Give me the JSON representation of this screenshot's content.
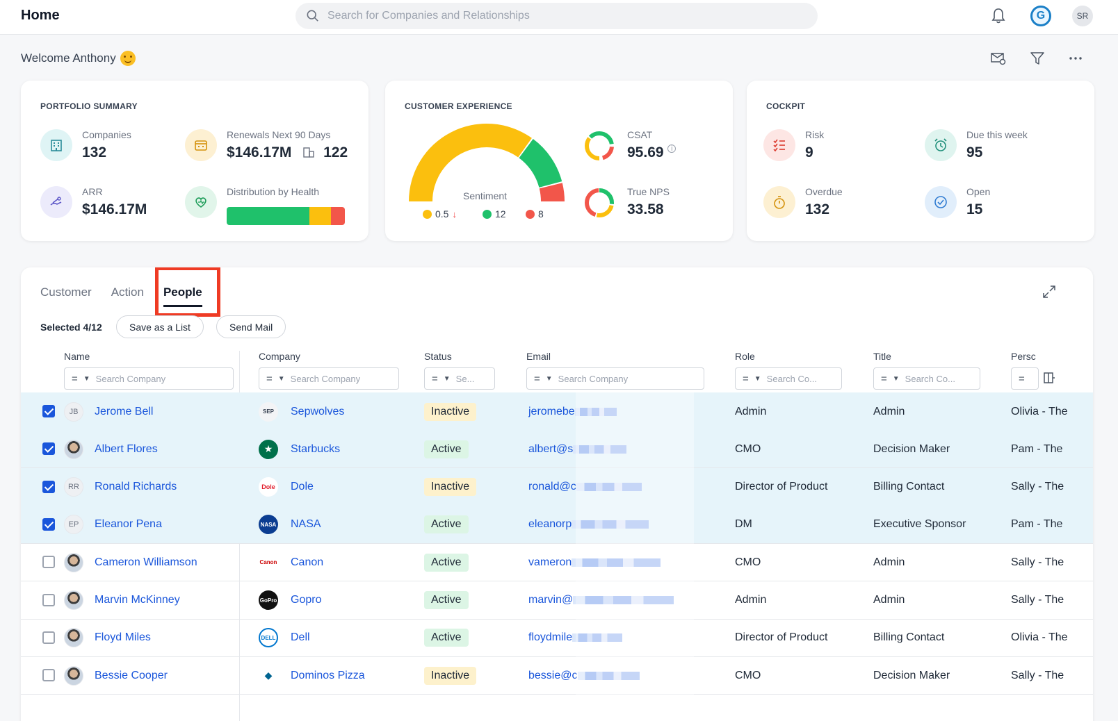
{
  "topbar": {
    "title": "Home",
    "search_placeholder": "Search for Companies and Relationships",
    "g_badge": "G",
    "user_initials": "SR"
  },
  "welcome": {
    "text": "Welcome Anthony"
  },
  "portfolio": {
    "title": "PORTFOLIO SUMMARY",
    "companies_label": "Companies",
    "companies_value": "132",
    "renewals_label": "Renewals Next 90 Days",
    "renewals_value": "$146.17M",
    "renewals_count": "122",
    "arr_label": "ARR",
    "arr_value": "$146.17M",
    "health_label": "Distribution by Health",
    "health": {
      "green": 0.7,
      "yellow": 0.18,
      "red": 0.12
    }
  },
  "experience": {
    "title": "CUSTOMER EXPERIENCE",
    "sentiment_label": "Sentiment",
    "sentiment": {
      "yellow": 0.5,
      "green": 12,
      "red": 8
    },
    "legend_yellow": "0.5",
    "legend_green": "12",
    "legend_red": "8",
    "csat_label": "CSAT",
    "csat_value": "95.69",
    "nps_label": "True NPS",
    "nps_value": "33.58"
  },
  "cockpit": {
    "title": "COCKPIT",
    "risk_label": "Risk",
    "risk_value": "9",
    "due_label": "Due this week",
    "due_value": "95",
    "overdue_label": "Overdue",
    "overdue_value": "132",
    "open_label": "Open",
    "open_value": "15"
  },
  "tabs": [
    "Customer",
    "Action",
    "People"
  ],
  "toolbar": {
    "selected_text": "Selected 4/12",
    "save_label": "Save as a List",
    "send_label": "Send Mail"
  },
  "columns": {
    "name": "Name",
    "company": "Company",
    "status": "Status",
    "email": "Email",
    "role": "Role",
    "title": "Title",
    "persona": "Persc",
    "name_ph": "Search Company",
    "company_ph": "Search Company",
    "status_ph": "Se...",
    "email_ph": "Search Company",
    "role_ph": "Search Co...",
    "title_ph": "Search Co..."
  },
  "rows": [
    {
      "initials": "JB",
      "name": "Jerome Bell",
      "company": "Sepwolves",
      "status": "Inactive",
      "email": "jeromebe",
      "role": "Admin",
      "title": "Admin",
      "persona": "Olivia - The",
      "checked": true
    },
    {
      "initials": "",
      "name": "Albert Flores",
      "company": "Starbucks",
      "status": "Active",
      "email": "albert@s",
      "role": "CMO",
      "title": "Decision Maker",
      "persona": "Pam - The",
      "checked": true
    },
    {
      "initials": "RR",
      "name": "Ronald Richards",
      "company": "Dole",
      "status": "Inactive",
      "email": "ronald@c",
      "role": "Director of Product",
      "title": "Billing Contact",
      "persona": "Sally - The",
      "checked": true
    },
    {
      "initials": "EP",
      "name": "Eleanor Pena",
      "company": "NASA",
      "status": "Active",
      "email": "eleanorp",
      "role": "DM",
      "title": "Executive Sponsor",
      "persona": "Pam - The",
      "checked": true
    },
    {
      "initials": "",
      "name": "Cameron Williamson",
      "company": "Canon",
      "status": "Active",
      "email": "vameron",
      "role": "CMO",
      "title": "Admin",
      "persona": "Sally - The",
      "checked": false
    },
    {
      "initials": "",
      "name": "Marvin McKinney",
      "company": "Gopro",
      "status": "Active",
      "email": "marvin@",
      "role": "Admin",
      "title": "Admin",
      "persona": "Sally - The",
      "checked": false
    },
    {
      "initials": "",
      "name": "Floyd Miles",
      "company": "Dell",
      "status": "Active",
      "email": "floydmile",
      "role": "Director of Product",
      "title": "Billing Contact",
      "persona": "Olivia - The",
      "checked": false
    },
    {
      "initials": "",
      "name": "Bessie Cooper",
      "company": "Dominos Pizza",
      "status": "Inactive",
      "email": "bessie@c",
      "role": "CMO",
      "title": "Decision Maker",
      "persona": "Sally - The",
      "checked": false
    }
  ],
  "company_logos": {
    "Sepwolves": "SEP",
    "Starbucks": "★",
    "Dole": "Dole",
    "NASA": "NASA",
    "Canon": "Canon",
    "Gopro": "GoPro",
    "Dell": "DELL",
    "Dominos Pizza": "◆"
  },
  "colors": {
    "accent": "#1a56db",
    "green": "#1fc16b",
    "yellow": "#fbbf0e",
    "red": "#f2564a",
    "highlight": "#ef3b24"
  }
}
